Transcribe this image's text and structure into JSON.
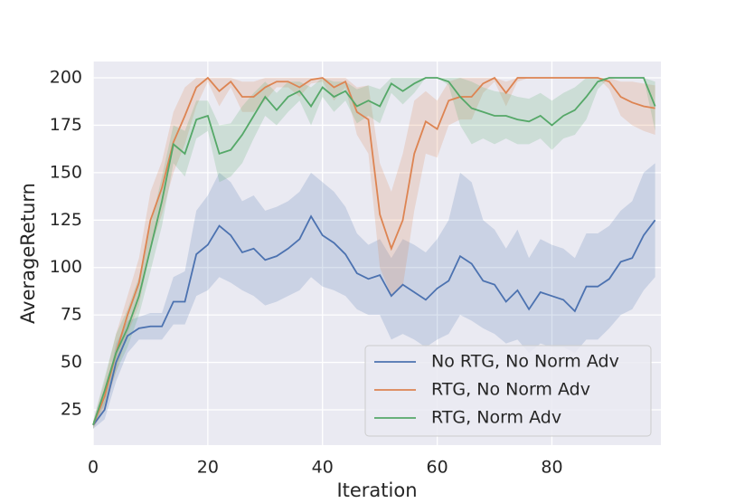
{
  "chart_data": {
    "type": "line",
    "x_label": "Iteration",
    "y_label": "AverageReturn",
    "x": [
      0,
      2,
      4,
      6,
      8,
      10,
      12,
      14,
      16,
      18,
      20,
      22,
      24,
      26,
      28,
      30,
      32,
      34,
      36,
      38,
      40,
      42,
      44,
      46,
      48,
      50,
      52,
      54,
      56,
      58,
      60,
      62,
      64,
      66,
      68,
      70,
      72,
      74,
      76,
      78,
      80,
      82,
      84,
      86,
      88,
      90,
      92,
      94,
      96,
      98
    ],
    "series": [
      {
        "name": "No RTG, No Norm Adv",
        "color": "#4c72b0",
        "values": [
          17,
          25,
          50,
          64,
          68,
          69,
          69,
          82,
          82,
          107,
          112,
          122,
          117,
          108,
          110,
          104,
          106,
          110,
          115,
          127,
          117,
          113,
          107,
          97,
          94,
          96,
          85,
          91,
          87,
          83,
          89,
          93,
          106,
          102,
          93,
          91,
          82,
          88,
          78,
          87,
          85,
          83,
          77,
          90,
          90,
          94,
          103,
          105,
          117,
          125
        ],
        "lower": [
          15,
          20,
          40,
          55,
          62,
          62,
          62,
          70,
          70,
          85,
          88,
          95,
          92,
          88,
          85,
          80,
          82,
          85,
          88,
          95,
          90,
          88,
          85,
          78,
          75,
          75,
          62,
          65,
          62,
          58,
          62,
          65,
          75,
          72,
          68,
          65,
          60,
          62,
          55,
          60,
          58,
          58,
          55,
          62,
          62,
          68,
          75,
          78,
          88,
          95
        ],
        "upper": [
          19,
          30,
          60,
          72,
          74,
          76,
          76,
          95,
          98,
          130,
          138,
          150,
          145,
          135,
          138,
          130,
          132,
          135,
          140,
          150,
          145,
          140,
          132,
          118,
          112,
          115,
          105,
          115,
          112,
          108,
          115,
          125,
          150,
          145,
          125,
          120,
          110,
          120,
          105,
          115,
          112,
          110,
          105,
          118,
          118,
          122,
          130,
          135,
          150,
          155
        ]
      },
      {
        "name": "RTG, No Norm Adv",
        "color": "#dd8452",
        "values": [
          17,
          32,
          55,
          75,
          92,
          125,
          142,
          166,
          180,
          195,
          200,
          193,
          198,
          190,
          190,
          195,
          198,
          198,
          195,
          199,
          200,
          195,
          198,
          182,
          178,
          128,
          110,
          125,
          160,
          177,
          173,
          188,
          190,
          190,
          197,
          200,
          192,
          200,
          200,
          200,
          200,
          200,
          200,
          200,
          200,
          198,
          190,
          187,
          185,
          184
        ],
        "lower": [
          15,
          25,
          45,
          65,
          80,
          110,
          128,
          150,
          165,
          185,
          198,
          185,
          195,
          182,
          182,
          188,
          195,
          195,
          190,
          197,
          198,
          188,
          195,
          170,
          160,
          100,
          85,
          90,
          130,
          160,
          158,
          175,
          178,
          178,
          192,
          198,
          185,
          198,
          200,
          200,
          200,
          200,
          200,
          200,
          200,
          194,
          180,
          175,
          172,
          170
        ],
        "upper": [
          19,
          40,
          65,
          85,
          105,
          140,
          156,
          182,
          195,
          200,
          200,
          200,
          200,
          198,
          198,
          200,
          200,
          200,
          200,
          200,
          200,
          200,
          200,
          195,
          196,
          155,
          140,
          160,
          188,
          193,
          188,
          198,
          200,
          200,
          200,
          200,
          198,
          200,
          200,
          200,
          200,
          200,
          200,
          200,
          200,
          200,
          198,
          198,
          197,
          196
        ]
      },
      {
        "name": "RTG, Norm Adv",
        "color": "#55a868",
        "values": [
          17,
          35,
          55,
          68,
          85,
          110,
          135,
          165,
          160,
          178,
          180,
          160,
          162,
          170,
          180,
          190,
          183,
          190,
          193,
          185,
          195,
          190,
          193,
          185,
          188,
          185,
          197,
          193,
          197,
          200,
          200,
          198,
          190,
          184,
          182,
          180,
          180,
          178,
          177,
          180,
          175,
          180,
          183,
          190,
          198,
          200,
          200,
          200,
          200,
          185
        ],
        "lower": [
          15,
          28,
          45,
          58,
          75,
          98,
          122,
          155,
          148,
          168,
          172,
          145,
          148,
          155,
          168,
          180,
          175,
          182,
          188,
          175,
          190,
          182,
          188,
          176,
          180,
          176,
          192,
          186,
          192,
          200,
          200,
          196,
          175,
          165,
          168,
          165,
          168,
          165,
          165,
          168,
          162,
          168,
          170,
          178,
          194,
          200,
          200,
          200,
          200,
          172
        ],
        "upper": [
          19,
          42,
          65,
          78,
          95,
          122,
          148,
          175,
          172,
          188,
          188,
          175,
          176,
          185,
          192,
          198,
          192,
          198,
          198,
          195,
          200,
          198,
          198,
          194,
          196,
          194,
          200,
          200,
          200,
          200,
          200,
          200,
          200,
          198,
          195,
          193,
          192,
          190,
          189,
          192,
          188,
          192,
          195,
          200,
          200,
          200,
          200,
          200,
          200,
          198
        ]
      }
    ],
    "xlim": [
      0,
      99
    ],
    "ylim": [
      6.4,
      208.6
    ],
    "xticks": [
      0,
      20,
      40,
      60,
      80
    ],
    "yticks": [
      25,
      50,
      75,
      100,
      125,
      150,
      175,
      200
    ],
    "grid": true,
    "legend": "lower right"
  }
}
